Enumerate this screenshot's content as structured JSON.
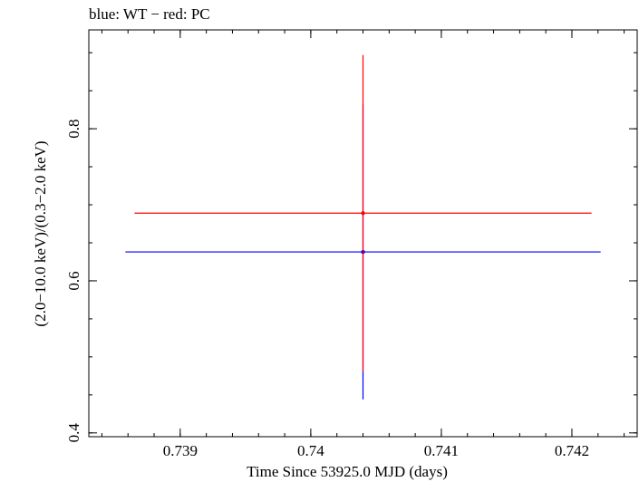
{
  "title": "blue: WT − red: PC",
  "chart_data": {
    "type": "scatter",
    "title": "blue: WT − red: PC",
    "xlabel": "Time Since 53925.0 MJD (days)",
    "ylabel": "(2.0−10.0 keV)/(0.3−2.0 keV)",
    "xlim": [
      0.7383,
      0.7425
    ],
    "ylim": [
      0.395,
      0.93
    ],
    "xticks": [
      {
        "value": 0.739,
        "label": "0.739"
      },
      {
        "value": 0.74,
        "label": "0.74"
      },
      {
        "value": 0.741,
        "label": "0.741"
      },
      {
        "value": 0.742,
        "label": "0.742"
      }
    ],
    "yticks": [
      {
        "value": 0.4,
        "label": "0.4"
      },
      {
        "value": 0.6,
        "label": "0.6"
      },
      {
        "value": 0.8,
        "label": "0.8"
      }
    ],
    "series": [
      {
        "name": "WT",
        "color": "#0000ff",
        "points": [
          {
            "x": 0.7404,
            "y": 0.638,
            "xerr_low": 0.00182,
            "xerr_high": 0.00182,
            "yerr_low": 0.194,
            "yerr_high": 0.194
          }
        ]
      },
      {
        "name": "PC",
        "color": "#ff0000",
        "points": [
          {
            "x": 0.7404,
            "y": 0.689,
            "xerr_low": 0.00175,
            "xerr_high": 0.00175,
            "yerr_low": 0.208,
            "yerr_high": 0.208
          }
        ]
      }
    ]
  }
}
